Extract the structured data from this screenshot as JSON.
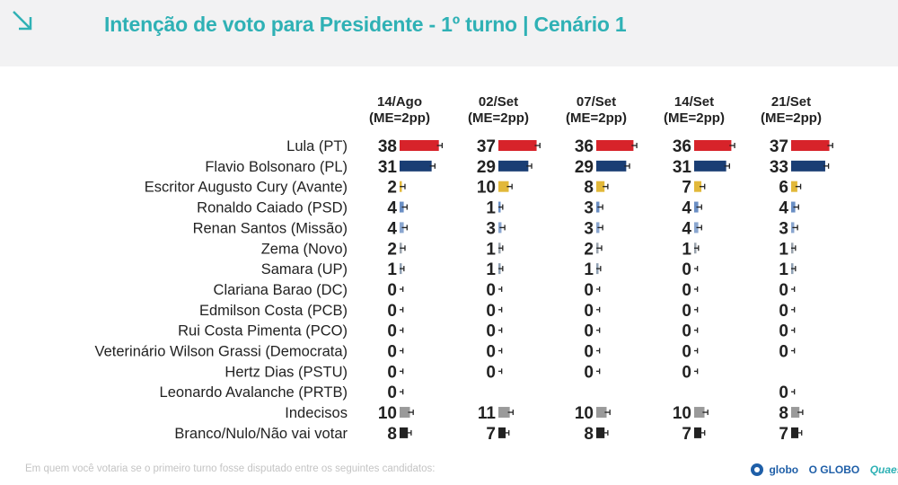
{
  "header": {
    "title": "Intenção de voto para Presidente - 1º turno | Cenário 1",
    "icon": "arrow-down-right-icon"
  },
  "chart_data": {
    "type": "bar",
    "title": "Intenção de voto para Presidente - 1º turno | Cenário 1",
    "columns": [
      {
        "date": "14/Ago",
        "me": "(ME=2pp)"
      },
      {
        "date": "02/Set",
        "me": "(ME=2pp)"
      },
      {
        "date": "07/Set",
        "me": "(ME=2pp)"
      },
      {
        "date": "14/Set",
        "me": "(ME=2pp)"
      },
      {
        "date": "21/Set",
        "me": "(ME=2pp)"
      }
    ],
    "categories": [
      "Lula (PT)",
      "Flavio Bolsonaro (PL)",
      "Escritor Augusto Cury (Avante)",
      "Ronaldo Caiado (PSD)",
      "Renan Santos (Missão)",
      "Zema (Novo)",
      "Samara (UP)",
      "Clariana Barao (DC)",
      "Edmilson Costa (PCB)",
      "Rui Costa Pimenta (PCO)",
      "Veterinário Wilson Grassi (Democrata)",
      "Hertz Dias (PSTU)",
      "Leonardo Avalanche (PRTB)",
      "Indecisos",
      "Branco/Nulo/Não vai votar"
    ],
    "series": [
      {
        "values": [
          38,
          31,
          2,
          4,
          4,
          2,
          1,
          0,
          0,
          0,
          0,
          0,
          0,
          10,
          8
        ]
      },
      {
        "values": [
          37,
          29,
          10,
          1,
          3,
          1,
          1,
          0,
          0,
          0,
          0,
          0,
          null,
          11,
          7
        ]
      },
      {
        "values": [
          36,
          29,
          8,
          3,
          3,
          2,
          1,
          0,
          0,
          0,
          0,
          0,
          null,
          10,
          8
        ]
      },
      {
        "values": [
          36,
          31,
          7,
          4,
          4,
          1,
          0,
          0,
          0,
          0,
          0,
          0,
          null,
          10,
          7
        ]
      },
      {
        "values": [
          37,
          33,
          6,
          4,
          3,
          1,
          1,
          0,
          0,
          0,
          0,
          null,
          0,
          8,
          7
        ]
      }
    ],
    "colors": [
      "#d7232a",
      "#1a3e74",
      "#e2b83a",
      "#6b8fc4",
      "#8aa6cf",
      "#9aa3ad",
      "#8fa0b3",
      "#9aa3ad",
      "#9aa3ad",
      "#9aa3ad",
      "#9aa3ad",
      "#9aa3ad",
      "#9aa3ad",
      "#9a9a9a",
      "#222222"
    ],
    "error_margin_pp": 2
  },
  "footer": {
    "note": "Em quem você votaria se o primeiro turno fosse disputado entre os seguintes candidatos:",
    "logos": [
      "globo",
      "O GLOBO",
      "Quaest"
    ]
  }
}
